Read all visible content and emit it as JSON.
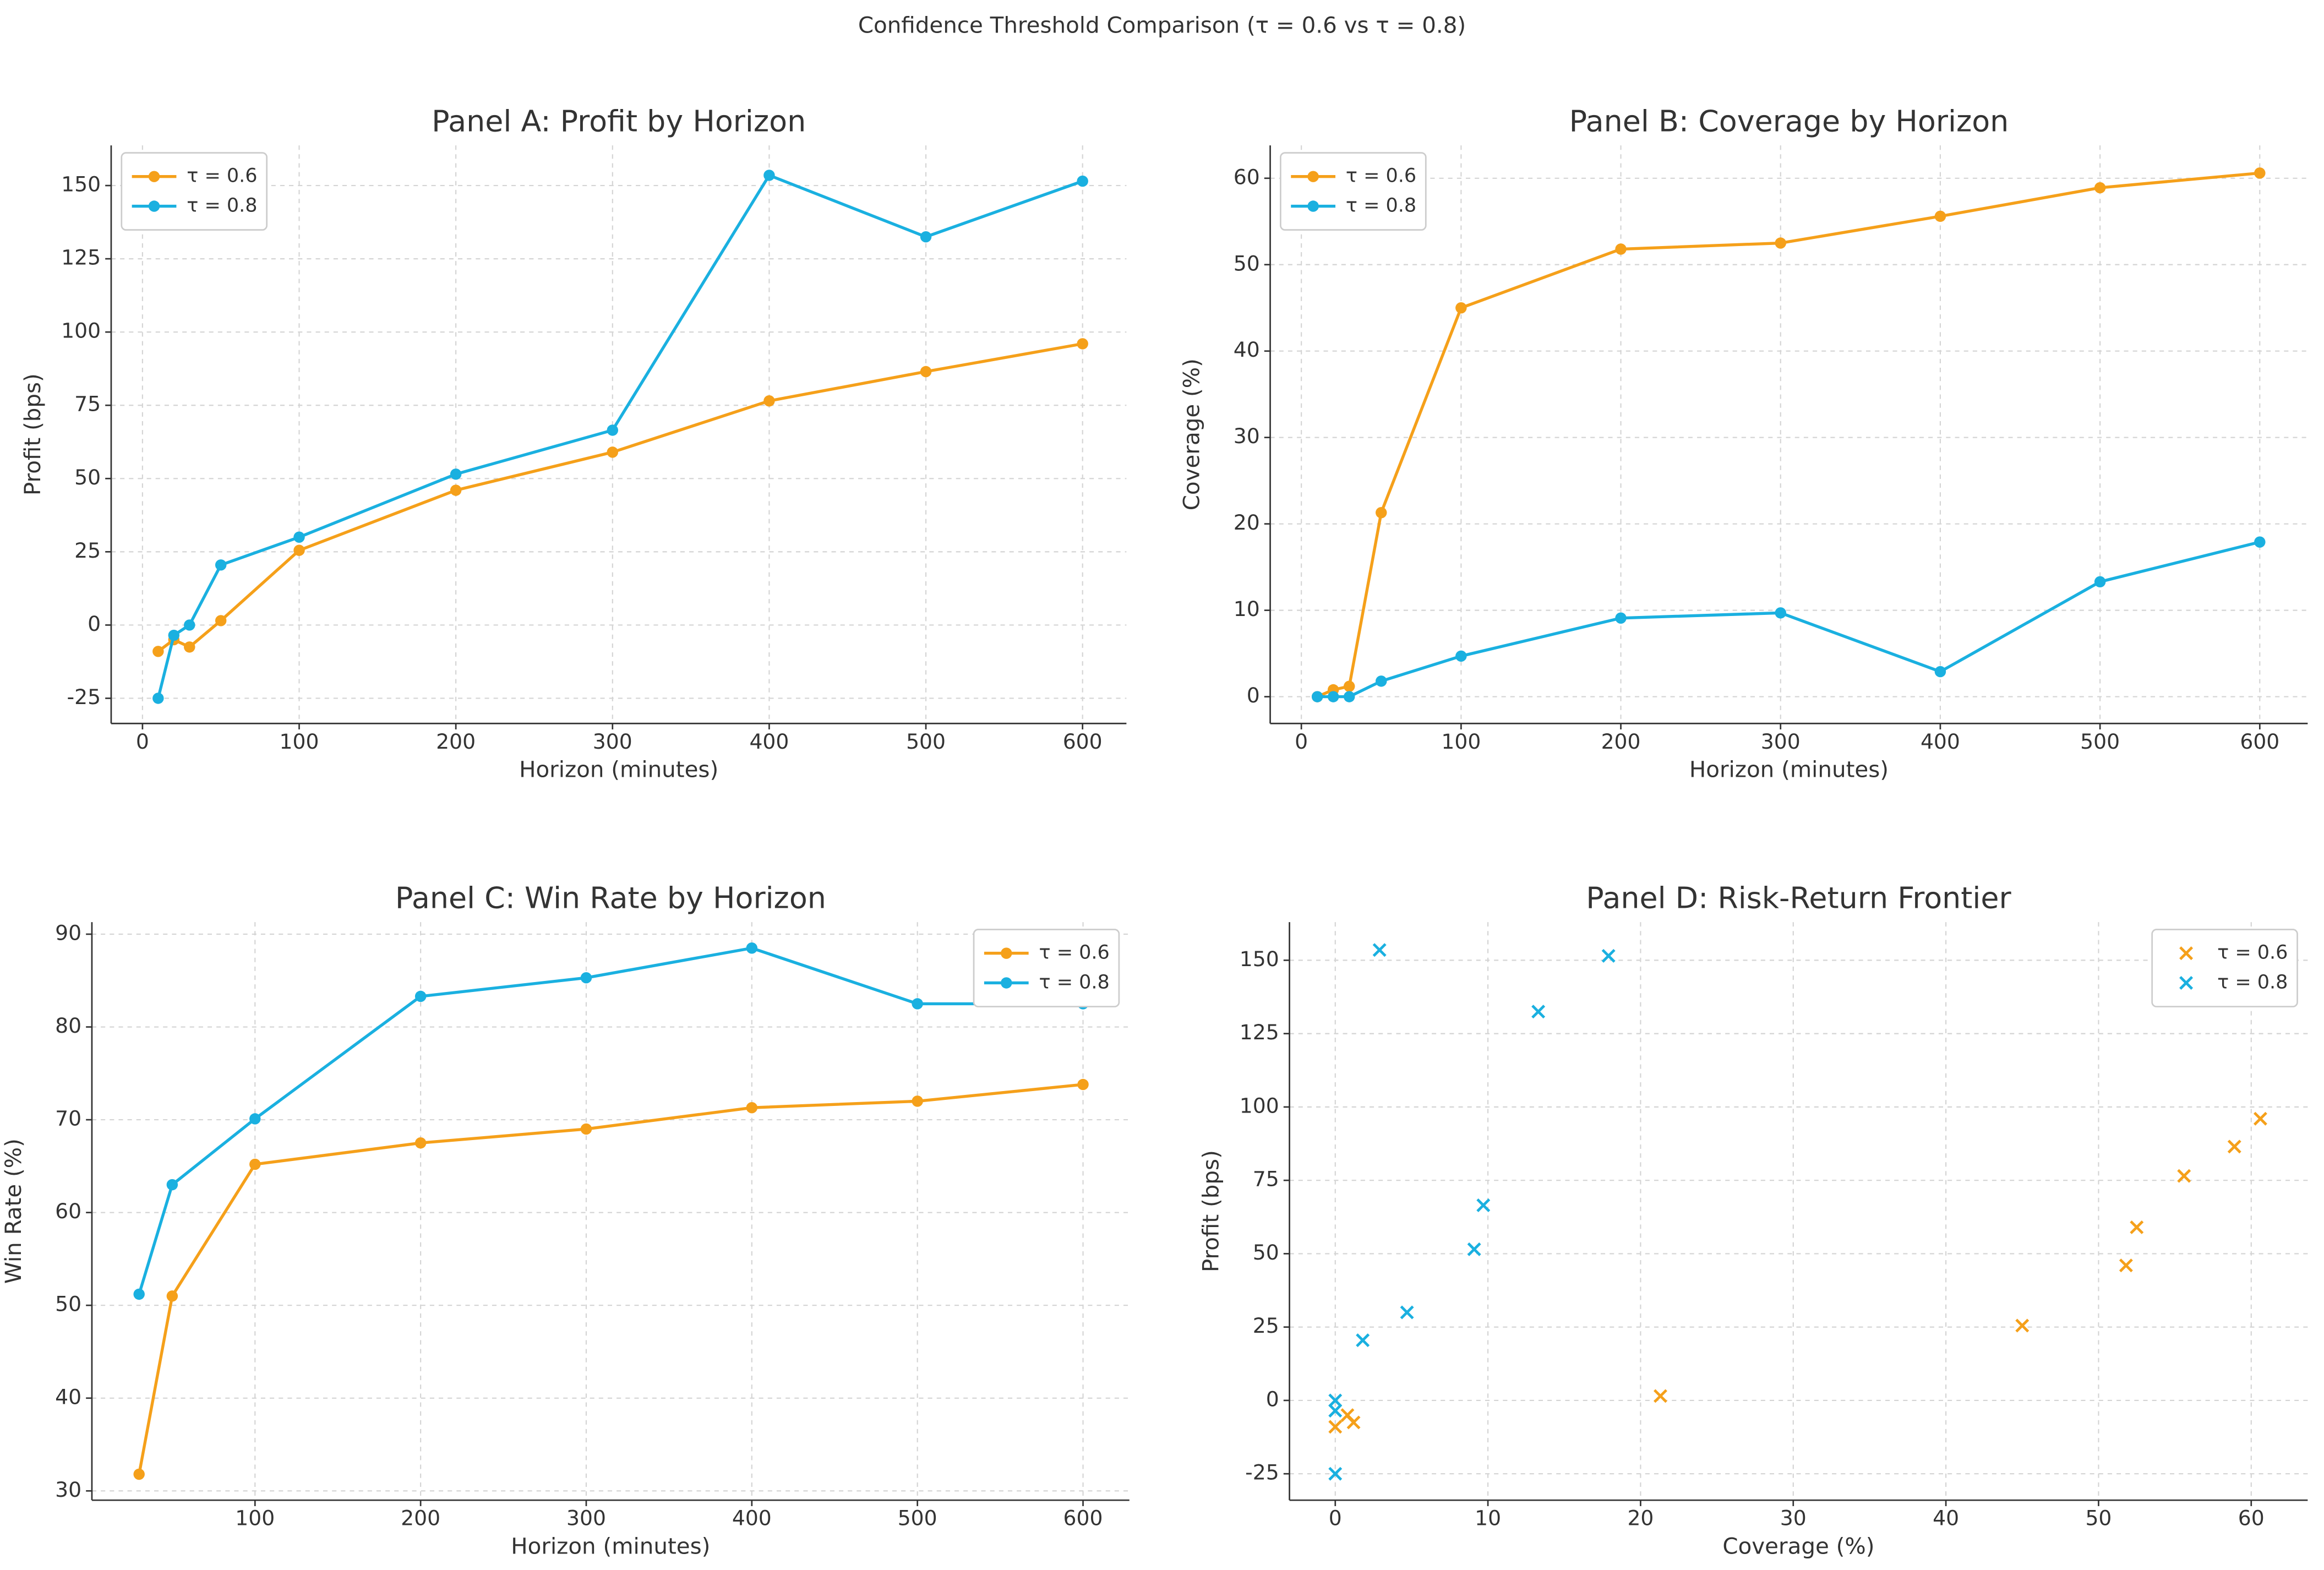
{
  "title": "Confidence Threshold Comparison (τ = 0.6 vs τ = 0.8)",
  "chart_data": [
    {
      "type": "line",
      "title": "Panel A: Profit by Horizon",
      "x_label": "Horizon (minutes)",
      "y_label": "Profit (bps)",
      "x": [
        10,
        20,
        30,
        50,
        100,
        200,
        300,
        400,
        500,
        600
      ],
      "series": [
        {
          "name": "τ = 0.6",
          "color": "#f5a01a",
          "values": [
            -9,
            -5,
            -7.5,
            1.5,
            25.5,
            46,
            59,
            76.5,
            86.5,
            96
          ]
        },
        {
          "name": "τ = 0.8",
          "color": "#1ab0e0",
          "values": [
            -25,
            -3.5,
            0,
            20.5,
            30,
            51.5,
            66.5,
            153.5,
            132.5,
            151.5
          ]
        }
      ],
      "xlim": [
        -20,
        628
      ],
      "ylim": [
        -33.6,
        163.7
      ],
      "xticks": [
        0,
        100,
        200,
        300,
        400,
        500,
        600
      ],
      "yticks": [
        -25,
        0,
        25,
        50,
        75,
        100,
        125,
        150
      ],
      "grid": true,
      "legend": "upper-left"
    },
    {
      "type": "line",
      "title": "Panel B: Coverage by Horizon",
      "x_label": "Horizon (minutes)",
      "y_label": "Coverage (%)",
      "x": [
        10,
        20,
        30,
        50,
        100,
        200,
        300,
        400,
        500,
        600
      ],
      "series": [
        {
          "name": "τ = 0.6",
          "color": "#f5a01a",
          "values": [
            0,
            0.8,
            1.2,
            21.3,
            45,
            51.8,
            52.5,
            55.6,
            58.9,
            60.6
          ]
        },
        {
          "name": "τ = 0.8",
          "color": "#1ab0e0",
          "values": [
            0,
            0,
            0,
            1.8,
            4.7,
            9.1,
            9.7,
            2.9,
            13.3,
            17.9
          ]
        }
      ],
      "xlim": [
        -19.5,
        630
      ],
      "ylim": [
        -3.1,
        63.8
      ],
      "xticks": [
        0,
        100,
        200,
        300,
        400,
        500,
        600
      ],
      "yticks": [
        0,
        10,
        20,
        30,
        40,
        50,
        60
      ],
      "grid": true,
      "legend": "upper-left"
    },
    {
      "type": "line",
      "title": "Panel C: Win Rate by Horizon",
      "x_label": "Horizon (minutes)",
      "y_label": "Win Rate (%)",
      "x": [
        30,
        50,
        100,
        200,
        300,
        400,
        500,
        600
      ],
      "series": [
        {
          "name": "τ = 0.6",
          "color": "#f5a01a",
          "values": [
            31.8,
            51,
            65.2,
            67.5,
            69,
            71.3,
            72,
            73.8
          ]
        },
        {
          "name": "τ = 0.8",
          "color": "#1ab0e0",
          "values": [
            51.2,
            63,
            70.1,
            83.3,
            85.3,
            88.5,
            82.5,
            82.5
          ]
        }
      ],
      "xlim": [
        1.5,
        628
      ],
      "ylim": [
        29,
        91.3
      ],
      "xticks": [
        100,
        200,
        300,
        400,
        500,
        600
      ],
      "yticks": [
        30,
        40,
        50,
        60,
        70,
        80,
        90
      ],
      "grid": true,
      "legend": "upper-right"
    },
    {
      "type": "scatter",
      "title": "Panel D: Risk-Return Frontier",
      "x_label": "Coverage (%)",
      "y_label": "Profit (bps)",
      "series": [
        {
          "name": "τ = 0.6",
          "color": "#f5a01a",
          "x": [
            0,
            0.8,
            1.2,
            21.3,
            45,
            51.8,
            52.5,
            55.6,
            58.9,
            60.6
          ],
          "values": [
            -9,
            -5,
            -7.5,
            1.5,
            25.5,
            46,
            59,
            76.5,
            86.5,
            96
          ]
        },
        {
          "name": "τ = 0.8",
          "color": "#1ab0e0",
          "x": [
            0,
            0,
            0,
            1.8,
            4.7,
            9.1,
            9.7,
            2.9,
            13.3,
            17.9
          ],
          "values": [
            -25,
            -3.5,
            0,
            20.5,
            30,
            51.5,
            66.5,
            153.5,
            132.5,
            151.5
          ]
        }
      ],
      "xlim": [
        -3,
        63.7
      ],
      "ylim": [
        -34,
        163
      ],
      "xticks": [
        0,
        10,
        20,
        30,
        40,
        50,
        60
      ],
      "yticks": [
        -25,
        0,
        25,
        50,
        75,
        100,
        125,
        150
      ],
      "grid": true,
      "legend": "upper-right"
    }
  ]
}
